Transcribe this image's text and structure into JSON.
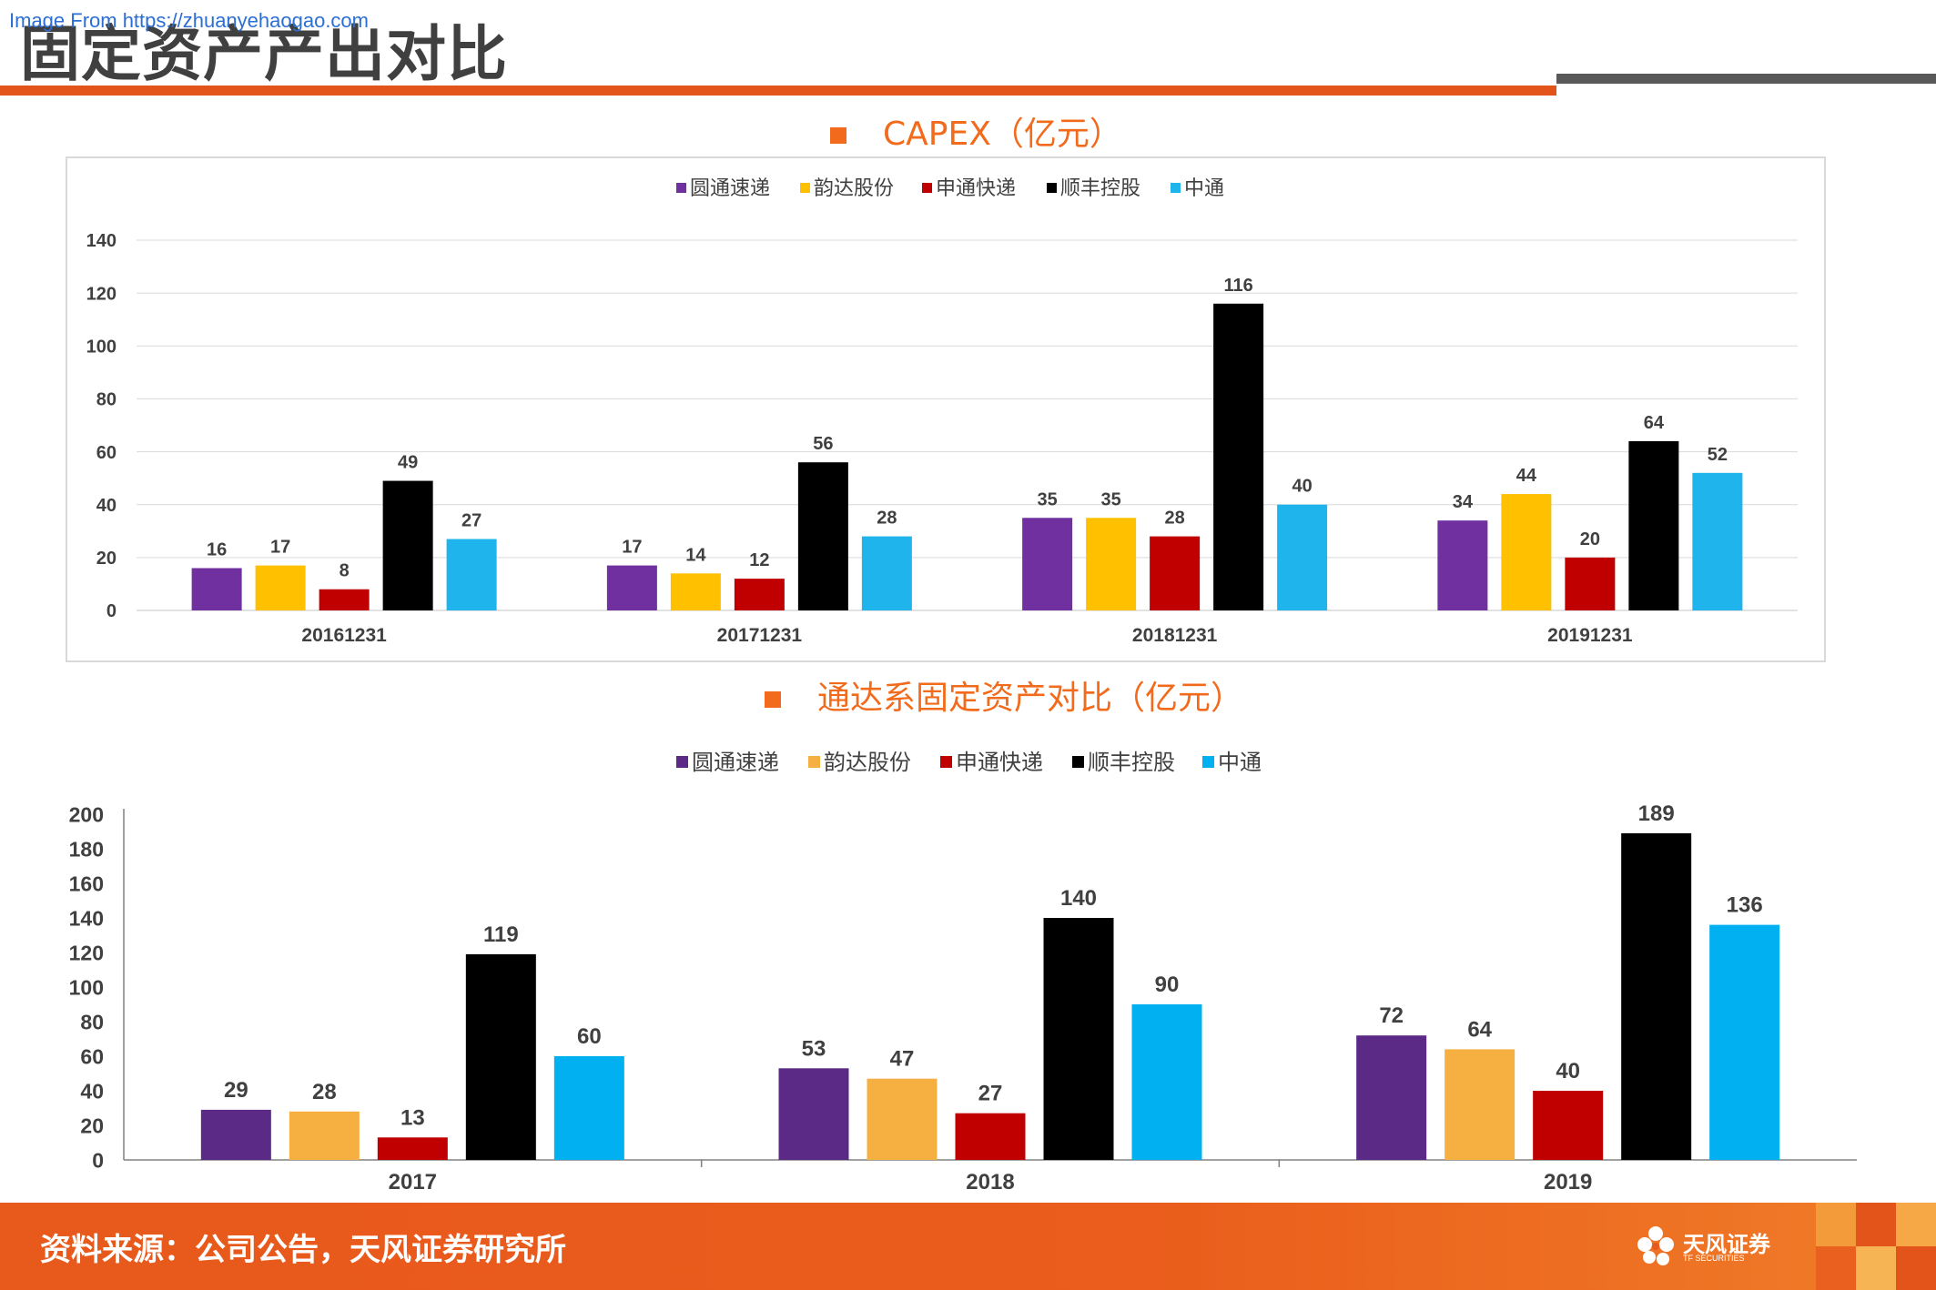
{
  "watermark": "Image From https://zhuanyehaogao.com",
  "page_title": "固定资产产出对比",
  "colors": {
    "accent": "#e2541a",
    "purple": "#7030a0",
    "yellow": "#ffc000",
    "red": "#c00000",
    "black": "#000000",
    "blue": "#1fb5ec",
    "purple2": "#5b2a86",
    "orange2": "#f6b042",
    "red2": "#c00000",
    "blue2": "#00b0f0"
  },
  "chart1": {
    "heading": "CAPEX（亿元）"
  },
  "chart2": {
    "heading": "通达系固定资产对比（亿元）"
  },
  "chart_data": [
    {
      "type": "bar",
      "title": "CAPEX（亿元）",
      "categories": [
        "20161231",
        "20171231",
        "20181231",
        "20191231"
      ],
      "series": [
        {
          "name": "圆通速递",
          "values": [
            16,
            17,
            35,
            34
          ],
          "color": "#7030a0"
        },
        {
          "name": "韵达股份",
          "values": [
            17,
            14,
            35,
            44
          ],
          "color": "#ffc000"
        },
        {
          "name": "申通快递",
          "values": [
            8,
            12,
            28,
            20
          ],
          "color": "#c00000"
        },
        {
          "name": "顺丰控股",
          "values": [
            49,
            56,
            116,
            64
          ],
          "color": "#000000"
        },
        {
          "name": "中通",
          "values": [
            27,
            28,
            40,
            52
          ],
          "color": "#1fb5ec"
        }
      ],
      "ylim": [
        0,
        140
      ],
      "yticks": [
        0,
        20,
        40,
        60,
        80,
        100,
        120,
        140
      ],
      "grid": true,
      "legend": "top"
    },
    {
      "type": "bar",
      "title": "通达系固定资产对比（亿元）",
      "categories": [
        "2017",
        "2018",
        "2019"
      ],
      "series": [
        {
          "name": "圆通速递",
          "values": [
            29,
            53,
            72
          ],
          "color": "#5b2a86"
        },
        {
          "name": "韵达股份",
          "values": [
            28,
            47,
            64
          ],
          "color": "#f6b042"
        },
        {
          "name": "申通快递",
          "values": [
            13,
            27,
            40
          ],
          "color": "#c00000"
        },
        {
          "name": "顺丰控股",
          "values": [
            119,
            140,
            189
          ],
          "color": "#000000"
        },
        {
          "name": "中通",
          "values": [
            60,
            90,
            136
          ],
          "color": "#00b0f0"
        }
      ],
      "ylim": [
        0,
        200
      ],
      "yticks": [
        0,
        20,
        40,
        60,
        80,
        100,
        120,
        140,
        160,
        180,
        200
      ],
      "grid": false,
      "legend": "top"
    }
  ],
  "footer": {
    "source": "资料来源：公司公告，天风证券研究所",
    "logo_name": "天风证券",
    "logo_sub": "TF SECURITIES"
  }
}
